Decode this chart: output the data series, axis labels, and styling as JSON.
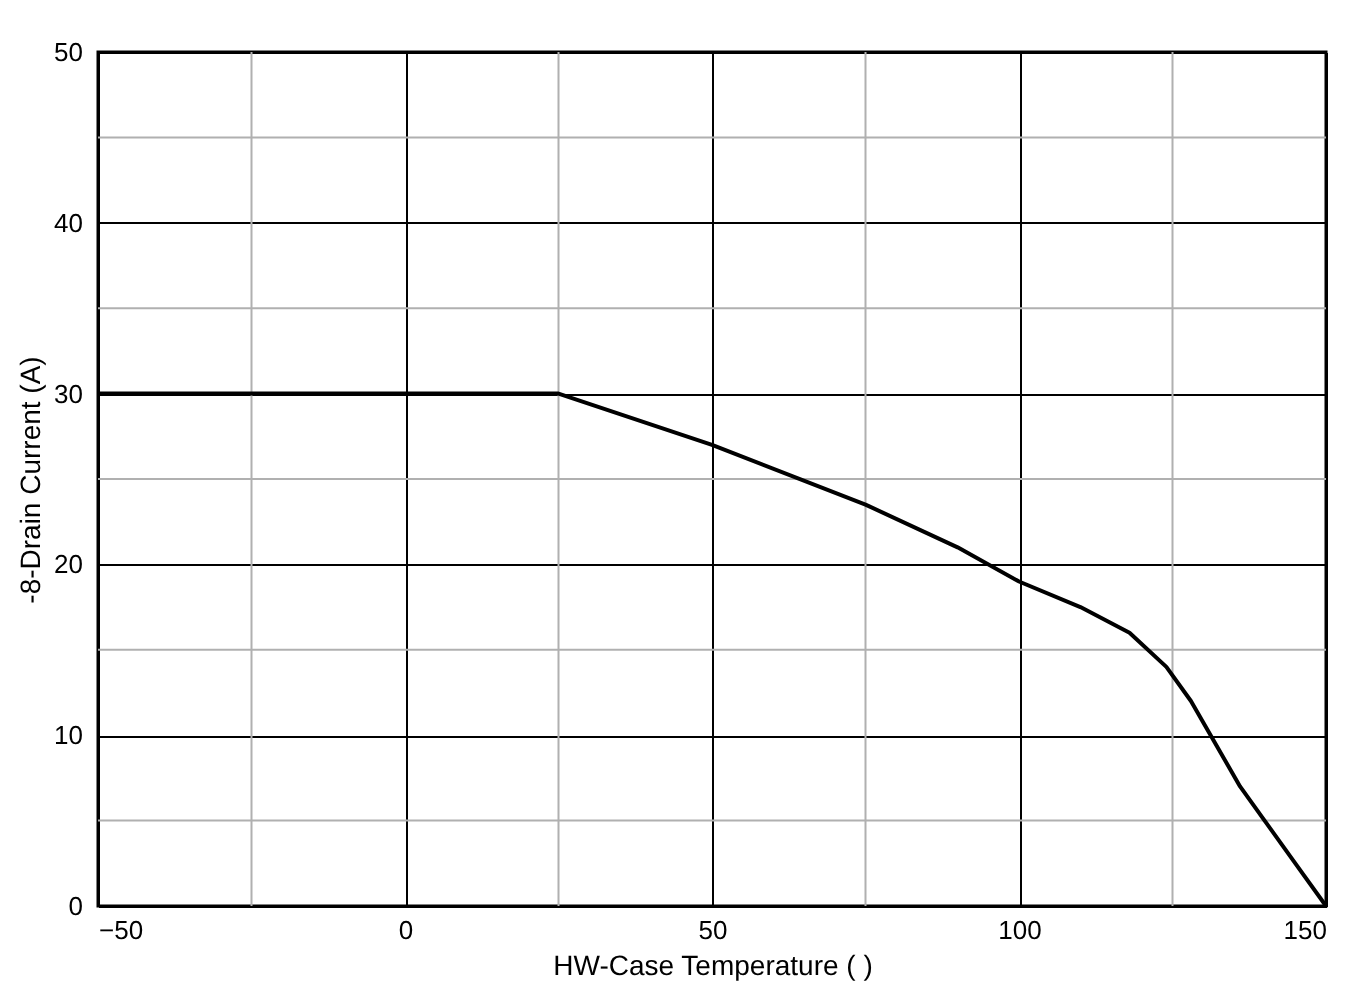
{
  "chart_data": {
    "type": "line",
    "xlabel": "HW-Case Temperature ( )",
    "ylabel": "-8-Drain Current (A)",
    "x": [
      -50,
      0,
      25,
      50,
      75,
      90,
      100,
      110,
      118,
      124,
      128,
      132,
      136,
      140,
      145,
      150
    ],
    "series": [
      {
        "color": "#000000",
        "values": [
          30,
          30,
          30,
          27,
          23.5,
          21,
          19,
          17.5,
          16,
          14,
          12,
          9.5,
          7,
          5,
          2.5,
          0
        ]
      }
    ],
    "xlim": [
      -50,
      150
    ],
    "xticks": [
      -50,
      0,
      50,
      100,
      150
    ],
    "ylim": [
      0,
      50
    ],
    "yticks": [
      0,
      10,
      20,
      30,
      40,
      50
    ],
    "grid": true,
    "marker": "none",
    "line_style": "solid"
  }
}
